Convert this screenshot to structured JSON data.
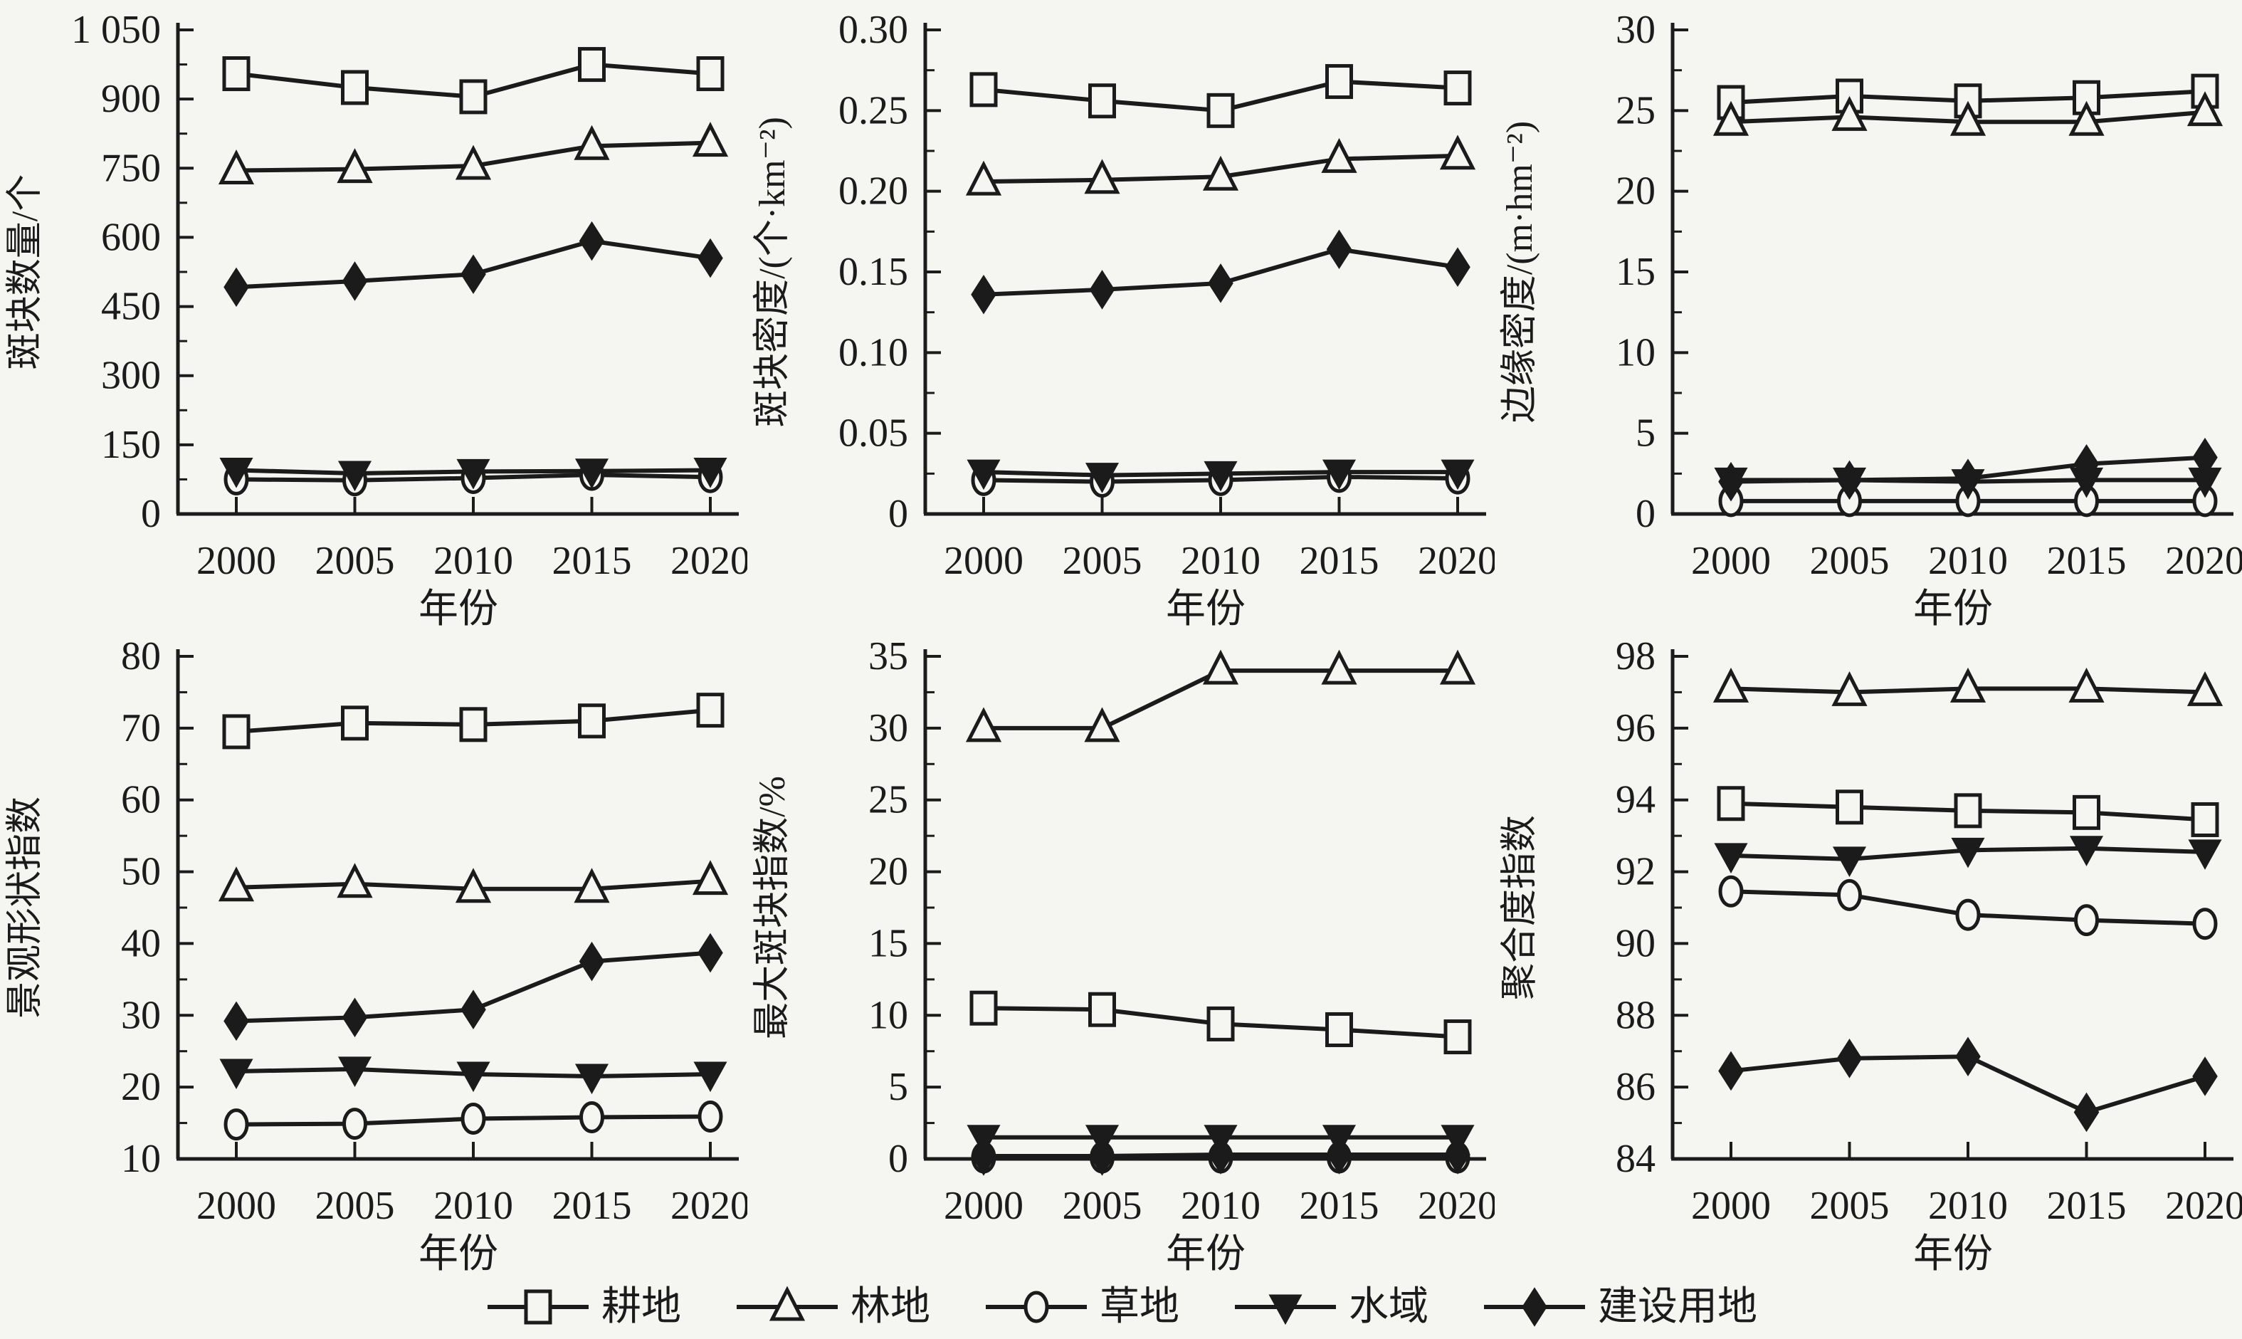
{
  "figure": {
    "x_axis_label": "年份",
    "x_categories": [
      "2000",
      "2005",
      "2010",
      "2015",
      "2020"
    ],
    "colors": {
      "background": "#f5f5f2",
      "ink": "#1b1b1b"
    }
  },
  "legend": {
    "items": [
      {
        "label": "耕地",
        "name_en": "cultivated-land",
        "marker": "square-open"
      },
      {
        "label": "林地",
        "name_en": "forest",
        "marker": "triangle-up-open"
      },
      {
        "label": "草地",
        "name_en": "grassland",
        "marker": "circle-open"
      },
      {
        "label": "水域",
        "name_en": "water",
        "marker": "triangle-down-filled"
      },
      {
        "label": "建设用地",
        "name_en": "construction-land",
        "marker": "diamond-filled"
      }
    ]
  },
  "chart_data": [
    {
      "type": "line",
      "id": "patch-number",
      "ylabel": "斑块数量/个",
      "xlabel": "年份",
      "x": [
        2000,
        2005,
        2010,
        2015,
        2020
      ],
      "ylim": [
        0,
        1050
      ],
      "yticks": [
        0,
        150,
        300,
        450,
        600,
        750,
        900,
        1050
      ],
      "ytick_labels": [
        "0",
        "150",
        "300",
        "450",
        "600",
        "750",
        "900",
        "1 050"
      ],
      "grid": false,
      "series": [
        {
          "name": "耕地",
          "name_en": "cultivated-land",
          "marker": "square-open",
          "values": [
            955,
            925,
            905,
            975,
            955
          ]
        },
        {
          "name": "林地",
          "name_en": "forest",
          "marker": "triangle-up-open",
          "values": [
            745,
            748,
            755,
            798,
            805
          ]
        },
        {
          "name": "草地",
          "name_en": "grassland",
          "marker": "circle-open",
          "values": [
            75,
            73,
            78,
            85,
            80
          ]
        },
        {
          "name": "水域",
          "name_en": "water",
          "marker": "triangle-down-filled",
          "values": [
            95,
            88,
            92,
            93,
            95
          ]
        },
        {
          "name": "建设用地",
          "name_en": "construction-land",
          "marker": "diamond-filled",
          "values": [
            492,
            505,
            520,
            592,
            555
          ]
        }
      ]
    },
    {
      "type": "line",
      "id": "patch-density",
      "ylabel": "斑块密度/(个·km⁻²)",
      "xlabel": "年份",
      "x": [
        2000,
        2005,
        2010,
        2015,
        2020
      ],
      "ylim": [
        0,
        0.3
      ],
      "yticks": [
        0,
        0.05,
        0.1,
        0.15,
        0.2,
        0.25,
        0.3
      ],
      "ytick_labels": [
        "0",
        "0.05",
        "0.10",
        "0.15",
        "0.20",
        "0.25",
        "0.30"
      ],
      "grid": false,
      "series": [
        {
          "name": "耕地",
          "name_en": "cultivated-land",
          "marker": "square-open",
          "values": [
            0.263,
            0.256,
            0.25,
            0.268,
            0.264
          ]
        },
        {
          "name": "林地",
          "name_en": "forest",
          "marker": "triangle-up-open",
          "values": [
            0.206,
            0.207,
            0.209,
            0.22,
            0.222
          ]
        },
        {
          "name": "草地",
          "name_en": "grassland",
          "marker": "circle-open",
          "values": [
            0.021,
            0.02,
            0.021,
            0.023,
            0.022
          ]
        },
        {
          "name": "水域",
          "name_en": "water",
          "marker": "triangle-down-filled",
          "values": [
            0.026,
            0.024,
            0.025,
            0.026,
            0.026
          ]
        },
        {
          "name": "建设用地",
          "name_en": "construction-land",
          "marker": "diamond-filled",
          "values": [
            0.136,
            0.139,
            0.143,
            0.164,
            0.153
          ]
        }
      ]
    },
    {
      "type": "line",
      "id": "edge-density",
      "ylabel": "边缘密度/(m·hm⁻²)",
      "xlabel": "年份",
      "x": [
        2000,
        2005,
        2010,
        2015,
        2020
      ],
      "ylim": [
        0,
        30
      ],
      "yticks": [
        0,
        5,
        10,
        15,
        20,
        25,
        30
      ],
      "ytick_labels": [
        "0",
        "5",
        "10",
        "15",
        "20",
        "25",
        "30"
      ],
      "grid": false,
      "series": [
        {
          "name": "耕地",
          "name_en": "cultivated-land",
          "marker": "square-open",
          "values": [
            25.5,
            25.9,
            25.6,
            25.8,
            26.2
          ]
        },
        {
          "name": "林地",
          "name_en": "forest",
          "marker": "triangle-up-open",
          "values": [
            24.3,
            24.6,
            24.3,
            24.3,
            24.9
          ]
        },
        {
          "name": "草地",
          "name_en": "grassland",
          "marker": "circle-open",
          "values": [
            0.8,
            0.8,
            0.8,
            0.8,
            0.8
          ]
        },
        {
          "name": "水域",
          "name_en": "water",
          "marker": "triangle-down-filled",
          "values": [
            2.1,
            2.1,
            2.0,
            2.1,
            2.1
          ]
        },
        {
          "name": "建设用地",
          "name_en": "construction-land",
          "marker": "diamond-filled",
          "values": [
            2.0,
            2.1,
            2.2,
            3.1,
            3.5
          ]
        }
      ]
    },
    {
      "type": "line",
      "id": "landscape-shape-index",
      "ylabel": "景观形状指数",
      "xlabel": "年份",
      "x": [
        2000,
        2005,
        2010,
        2015,
        2020
      ],
      "ylim": [
        10,
        80
      ],
      "yticks": [
        10,
        20,
        30,
        40,
        50,
        60,
        70,
        80
      ],
      "ytick_labels": [
        "10",
        "20",
        "30",
        "40",
        "50",
        "60",
        "70",
        "80"
      ],
      "grid": false,
      "series": [
        {
          "name": "耕地",
          "name_en": "cultivated-land",
          "marker": "square-open",
          "values": [
            69.5,
            70.7,
            70.5,
            71.0,
            72.5
          ]
        },
        {
          "name": "林地",
          "name_en": "forest",
          "marker": "triangle-up-open",
          "values": [
            47.8,
            48.3,
            47.6,
            47.6,
            48.7
          ]
        },
        {
          "name": "草地",
          "name_en": "grassland",
          "marker": "circle-open",
          "values": [
            14.8,
            14.9,
            15.6,
            15.8,
            15.9
          ]
        },
        {
          "name": "水域",
          "name_en": "water",
          "marker": "triangle-down-filled",
          "values": [
            22.2,
            22.5,
            21.8,
            21.5,
            21.8
          ]
        },
        {
          "name": "建设用地",
          "name_en": "construction-land",
          "marker": "diamond-filled",
          "values": [
            29.2,
            29.7,
            30.8,
            37.5,
            38.7
          ]
        }
      ]
    },
    {
      "type": "line",
      "id": "largest-patch-index",
      "ylabel": "最大斑块指数/%",
      "xlabel": "年份",
      "x": [
        2000,
        2005,
        2010,
        2015,
        2020
      ],
      "ylim": [
        0,
        35
      ],
      "yticks": [
        0,
        5,
        10,
        15,
        20,
        25,
        30,
        35
      ],
      "ytick_labels": [
        "0",
        "5",
        "10",
        "15",
        "20",
        "25",
        "30",
        "35"
      ],
      "grid": false,
      "series": [
        {
          "name": "耕地",
          "name_en": "cultivated-land",
          "marker": "square-open",
          "values": [
            10.5,
            10.4,
            9.4,
            9.0,
            8.5
          ]
        },
        {
          "name": "林地",
          "name_en": "forest",
          "marker": "triangle-up-open",
          "values": [
            30,
            30,
            34,
            34,
            34
          ]
        },
        {
          "name": "草地",
          "name_en": "grassland",
          "marker": "circle-open",
          "values": [
            0.1,
            0.1,
            0.1,
            0.1,
            0.1
          ]
        },
        {
          "name": "水域",
          "name_en": "water",
          "marker": "triangle-down-filled",
          "values": [
            1.5,
            1.5,
            1.5,
            1.5,
            1.5
          ]
        },
        {
          "name": "建设用地",
          "name_en": "construction-land",
          "marker": "diamond-filled",
          "values": [
            0.2,
            0.2,
            0.3,
            0.3,
            0.3
          ]
        }
      ]
    },
    {
      "type": "line",
      "id": "aggregation-index",
      "ylabel": "聚合度指数",
      "xlabel": "年份",
      "x": [
        2000,
        2005,
        2010,
        2015,
        2020
      ],
      "ylim": [
        84,
        98
      ],
      "yticks": [
        84,
        86,
        88,
        90,
        92,
        94,
        96,
        98
      ],
      "ytick_labels": [
        "84",
        "86",
        "88",
        "90",
        "92",
        "94",
        "96",
        "98"
      ],
      "grid": false,
      "series": [
        {
          "name": "耕地",
          "name_en": "cultivated-land",
          "marker": "square-open",
          "values": [
            93.9,
            93.8,
            93.7,
            93.65,
            93.45
          ]
        },
        {
          "name": "林地",
          "name_en": "forest",
          "marker": "triangle-up-open",
          "values": [
            97.1,
            97.0,
            97.1,
            97.1,
            97.0
          ]
        },
        {
          "name": "草地",
          "name_en": "grassland",
          "marker": "circle-open",
          "values": [
            91.45,
            91.35,
            90.8,
            90.65,
            90.55
          ]
        },
        {
          "name": "水域",
          "name_en": "water",
          "marker": "triangle-down-filled",
          "values": [
            92.45,
            92.35,
            92.6,
            92.65,
            92.55
          ]
        },
        {
          "name": "建设用地",
          "name_en": "construction-land",
          "marker": "diamond-filled",
          "values": [
            86.45,
            86.8,
            86.85,
            85.3,
            86.3
          ]
        }
      ]
    }
  ]
}
